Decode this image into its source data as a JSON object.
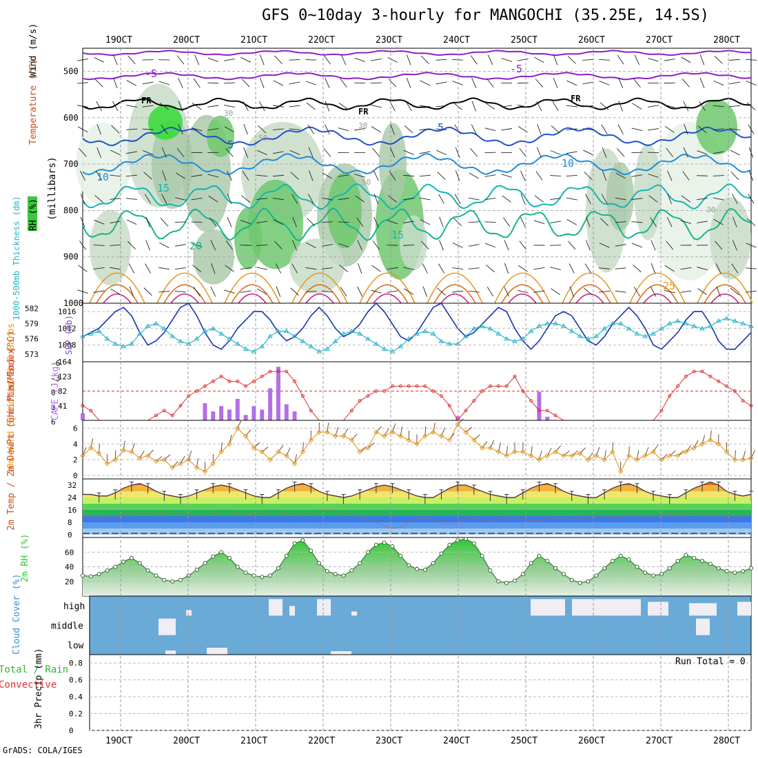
{
  "title": "GFS 0~10day 3-hourly for MANGOCHI (35.25E, 14.5S)",
  "credit": "GrADS: COLA/IGES",
  "date_labels": [
    "19OCT",
    "20OCT",
    "21OCT",
    "22OCT",
    "23OCT",
    "24OCT",
    "25OCT",
    "26OCT",
    "27OCT",
    "28OCT"
  ],
  "colors": {
    "rh_green": "#3cc83c",
    "temp_warm": "#e08a1e",
    "temp_cool": "#1e50c8",
    "cloud_blue": "#6aaad6",
    "slp_blue": "#1432b4",
    "thickness_cyan": "#28b4c8",
    "li_red": "#dc3232",
    "cape_purple": "#b46ee6",
    "wind_orange": "#e6961e",
    "rh2m_green": "#32c832"
  },
  "chart_data": [
    {
      "id": "upper_air",
      "type": "contour",
      "yaxis_label": "(millibars)",
      "legend_labels": [
        "RH (%)",
        "Temperature (°C)",
        "Wind (m/s)"
      ],
      "ylim": [
        1000,
        450
      ],
      "yticks": [
        500,
        600,
        700,
        800,
        900,
        1000
      ],
      "freezing_label": "FR",
      "rh_contour_labels": [
        "30",
        "50",
        "30",
        "50",
        "30"
      ],
      "temperature_contour_labels": [
        "-5",
        "-5",
        "5",
        "5",
        "10",
        "10",
        "15",
        "15",
        "20",
        "25"
      ]
    },
    {
      "id": "slp_thickness",
      "type": "line",
      "ylabel_left": "1000-500mb Thickness (dm)",
      "ylabel_right": "SLP (mb)",
      "yticks_left": [
        582,
        579,
        576,
        573
      ],
      "yticks_right": [
        1016,
        1012,
        1008
      ],
      "series": [
        {
          "name": "SLP",
          "values": [
            1010,
            1011,
            1012,
            1014,
            1016,
            1017,
            1015,
            1011,
            1008,
            1009,
            1011,
            1014,
            1017,
            1018,
            1015,
            1011,
            1008,
            1007,
            1009,
            1012,
            1014,
            1016,
            1016,
            1014,
            1011,
            1009,
            1010,
            1012,
            1015,
            1017,
            1015,
            1012,
            1010,
            1011,
            1013,
            1016,
            1018,
            1016,
            1013,
            1010,
            1009,
            1011,
            1014,
            1017,
            1018,
            1015,
            1012,
            1010,
            1011,
            1013,
            1015,
            1017,
            1016,
            1012,
            1009,
            1007,
            1009,
            1012,
            1015,
            1016,
            1015,
            1012,
            1009,
            1008,
            1010,
            1013,
            1015,
            1017,
            1015,
            1012,
            1008,
            1007,
            1009,
            1011,
            1014,
            1016,
            1016,
            1013,
            1009,
            1007,
            1007,
            1009,
            1011
          ]
        },
        {
          "name": "Thickness",
          "values": [
            576.5,
            577,
            577.5,
            576,
            575,
            574.5,
            575,
            577,
            578.5,
            579,
            578,
            576.5,
            575.5,
            575,
            576,
            577.5,
            578,
            577,
            576,
            575,
            574,
            573.5,
            574.5,
            576.5,
            577.5,
            577.5,
            576.5,
            575.5,
            574.5,
            573.5,
            574,
            575.5,
            577,
            577.5,
            577,
            576,
            575,
            574,
            573.5,
            574.5,
            576,
            577,
            577.5,
            577,
            575.5,
            575,
            575,
            576.5,
            578,
            578.5,
            578,
            577,
            576,
            575.5,
            576,
            577.5,
            578.5,
            579,
            579,
            578.5,
            577.5,
            576.5,
            576,
            576.5,
            578,
            579,
            579,
            578,
            577,
            576.5,
            577,
            578,
            579,
            579.5,
            579,
            578.5,
            578,
            578.5,
            579.5,
            580,
            579.5,
            579,
            578.5
          ]
        }
      ]
    },
    {
      "id": "li_cape",
      "type": "bar_line",
      "ylabel_left": "Lifted Index",
      "ylabel_right": "CAPE (J/kg)",
      "yticks_left": [
        "-6",
        "-3",
        "0",
        "3",
        "6"
      ],
      "yticks_right": [
        "164",
        "123",
        "82",
        "41"
      ],
      "cape_values": [
        20,
        0,
        0,
        0,
        0,
        0,
        0,
        0,
        0,
        0,
        0,
        0,
        0,
        0,
        0,
        48,
        25,
        40,
        30,
        60,
        15,
        40,
        30,
        90,
        150,
        45,
        25,
        0,
        0,
        0,
        0,
        0,
        0,
        0,
        0,
        0,
        0,
        0,
        0,
        0,
        0,
        0,
        0,
        0,
        0,
        0,
        12,
        0,
        0,
        0,
        0,
        0,
        0,
        0,
        0,
        0,
        80,
        10,
        0,
        0,
        0,
        0,
        0,
        0,
        0,
        0,
        0,
        0,
        0,
        0,
        0,
        0,
        0,
        0,
        0,
        0,
        0,
        0,
        0,
        0,
        0,
        0,
        0
      ],
      "li_values": [
        3,
        4,
        6,
        6,
        6,
        6,
        6,
        6,
        6,
        5,
        4,
        5,
        3,
        1,
        0,
        -1,
        -2,
        -3,
        -2,
        -2,
        -1,
        -2,
        -3,
        -4,
        -4,
        -4,
        -2,
        1,
        4,
        6,
        6,
        6,
        6,
        4,
        2,
        1,
        0,
        0,
        -1,
        -1,
        -1,
        -1,
        -1,
        0,
        1,
        3,
        6,
        4,
        2,
        0,
        -1,
        -1,
        -1,
        -3,
        0,
        2,
        4,
        4,
        5,
        6,
        6,
        6,
        6,
        6,
        6,
        6,
        6,
        6,
        6,
        6,
        6,
        4,
        1,
        -1,
        -3,
        -4,
        -4,
        -3,
        -2,
        -1,
        0,
        2,
        3
      ]
    },
    {
      "id": "wind10m",
      "type": "line",
      "ylabel": "10m Wind Speed (m/s) & Barbs",
      "yticks": [
        "6",
        "4",
        "2",
        "0"
      ],
      "ylim": [
        0,
        7
      ],
      "values": [
        2.5,
        3.5,
        2.8,
        1.5,
        2.0,
        3.2,
        3.0,
        2.2,
        2.5,
        1.8,
        2.0,
        1.0,
        1.5,
        2.0,
        1.0,
        0.5,
        1.5,
        3.0,
        4.0,
        6.0,
        5.0,
        3.5,
        3.0,
        2.0,
        3.0,
        2.5,
        1.5,
        3.0,
        4.5,
        5.5,
        5.5,
        5.0,
        5.0,
        4.5,
        3.0,
        3.5,
        5.5,
        5.0,
        5.5,
        5.0,
        4.5,
        4.0,
        5.0,
        5.5,
        5.0,
        4.5,
        6.5,
        5.5,
        4.5,
        3.5,
        3.5,
        3.0,
        2.5,
        3.0,
        3.0,
        2.5,
        2.0,
        2.5,
        3.0,
        2.5,
        2.5,
        2.8,
        2.0,
        2.5,
        2.0,
        3.0,
        0.5,
        2.5,
        2.0,
        2.5,
        3.0,
        2.0,
        2.5,
        2.5,
        3.0,
        3.5,
        4.0,
        4.5,
        4.0,
        3.0,
        2.0,
        2.0,
        2.2
      ]
    },
    {
      "id": "temperature",
      "type": "area",
      "ylabel": "2m Temp / 2m DewPt (6hr Min/Max) (°C)",
      "yticks": [
        "32",
        "24",
        "16",
        "8",
        "0"
      ],
      "temp_values": [
        26,
        26,
        25,
        25,
        27,
        30,
        32,
        33,
        31,
        28,
        26,
        25,
        24,
        25,
        27,
        29,
        31,
        32,
        31,
        29,
        27,
        25,
        24,
        24,
        27,
        30,
        32,
        33,
        31,
        28,
        26,
        25,
        24,
        25,
        27,
        29,
        31,
        32,
        31,
        29,
        27,
        25,
        24,
        24,
        27,
        30,
        32,
        32,
        30,
        28,
        26,
        25,
        24,
        24,
        27,
        30,
        32,
        33,
        31,
        28,
        26,
        25,
        24,
        24,
        27,
        30,
        32,
        33,
        31,
        28,
        26,
        25,
        24,
        24,
        27,
        30,
        32,
        34,
        32,
        28,
        26,
        25,
        26
      ],
      "dewpt_values": [
        12,
        11,
        11,
        12,
        12,
        13,
        13,
        14,
        14,
        13,
        13,
        14,
        14,
        13,
        12,
        13,
        14,
        15,
        15,
        14,
        13,
        13,
        14,
        15,
        15,
        14,
        13,
        13,
        14,
        15,
        16,
        15,
        14,
        13,
        12,
        10,
        8,
        6,
        4,
        5,
        8,
        10,
        11,
        10,
        8,
        6,
        8,
        10,
        11,
        10,
        8,
        10,
        11,
        11,
        10,
        9,
        9,
        10,
        11,
        11,
        10,
        10,
        11,
        12,
        12,
        12,
        12,
        13,
        13,
        12,
        12,
        13,
        13,
        13,
        13,
        14,
        14,
        13,
        13,
        12,
        12,
        12,
        13
      ]
    },
    {
      "id": "rh2m",
      "type": "area",
      "ylabel": "2m RH (%)",
      "yticks": [
        "60",
        "40",
        "20"
      ],
      "ylim": [
        0,
        80
      ],
      "values": [
        28,
        27,
        30,
        35,
        40,
        47,
        52,
        45,
        35,
        28,
        22,
        20,
        22,
        28,
        36,
        45,
        54,
        60,
        52,
        40,
        32,
        28,
        26,
        28,
        38,
        55,
        72,
        76,
        62,
        45,
        34,
        30,
        28,
        35,
        45,
        60,
        70,
        73,
        68,
        55,
        42,
        37,
        36,
        45,
        58,
        70,
        76,
        78,
        72,
        55,
        35,
        20,
        18,
        21,
        30,
        45,
        55,
        48,
        38,
        30,
        22,
        18,
        20,
        28,
        38,
        48,
        55,
        50,
        40,
        32,
        28,
        30,
        38,
        48,
        56,
        52,
        48,
        44,
        38,
        34,
        32,
        34,
        38
      ]
    },
    {
      "id": "cloud_cover",
      "type": "heatmap",
      "ylabel": "Cloud Cover (%)",
      "rows": [
        "high",
        "middle",
        "low"
      ]
    },
    {
      "id": "precip",
      "type": "bar",
      "ylabel": "3hr Precip (mm)",
      "legend_labels": [
        "Total / Rain",
        "Convective"
      ],
      "yticks": [
        "0.8",
        "0.6",
        "0.4",
        "0.2",
        "0"
      ],
      "ylim": [
        0,
        0.9
      ],
      "run_total": "Run Total = 0",
      "values": []
    }
  ]
}
